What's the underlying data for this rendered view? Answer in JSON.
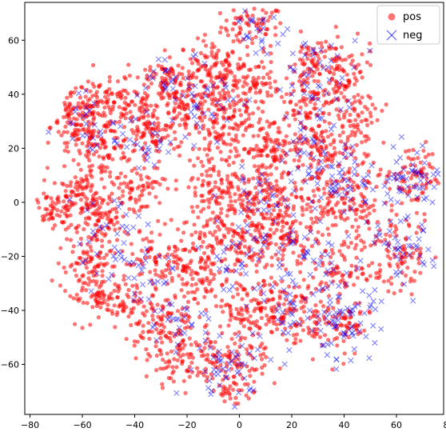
{
  "chart_data": {
    "type": "scatter",
    "title": "",
    "xlabel": "",
    "ylabel": "",
    "xlim": [
      -82,
      78
    ],
    "ylim": [
      -78.5,
      74
    ],
    "xticks": [
      -80,
      -60,
      -40,
      -20,
      0,
      20,
      40,
      60,
      80
    ],
    "yticks": [
      -60,
      -40,
      -20,
      0,
      20,
      40,
      60
    ],
    "x_tick_labels": [
      "−80",
      "−60",
      "−40",
      "−20",
      "0",
      "20",
      "40",
      "60",
      "80"
    ],
    "y_tick_labels": [
      "−60",
      "−40",
      "−20",
      "0",
      "20",
      "40",
      "60"
    ],
    "grid": false,
    "legend_position": "top-right",
    "series": [
      {
        "name": "pos",
        "marker": "circle",
        "color": "#ff0000",
        "alpha": 0.55,
        "clusters": [
          {
            "cx": 5,
            "cy": 65,
            "sx": 6,
            "sy": 4,
            "n": 70
          },
          {
            "cx": -10,
            "cy": 52,
            "sx": 5,
            "sy": 4,
            "n": 55
          },
          {
            "cx": -28,
            "cy": 45,
            "sx": 8,
            "sy": 5,
            "n": 110
          },
          {
            "cx": -52,
            "cy": 37,
            "sx": 9,
            "sy": 4,
            "n": 120
          },
          {
            "cx": -62,
            "cy": 28,
            "sx": 5,
            "sy": 6,
            "n": 90
          },
          {
            "cx": -52,
            "cy": 20,
            "sx": 6,
            "sy": 6,
            "n": 100
          },
          {
            "cx": -35,
            "cy": 26,
            "sx": 6,
            "sy": 6,
            "n": 100
          },
          {
            "cx": -22,
            "cy": 35,
            "sx": 5,
            "sy": 5,
            "n": 60
          },
          {
            "cx": -8,
            "cy": 40,
            "sx": 6,
            "sy": 6,
            "n": 110
          },
          {
            "cx": 5,
            "cy": 45,
            "sx": 5,
            "sy": 5,
            "n": 60
          },
          {
            "cx": -5,
            "cy": 25,
            "sx": 8,
            "sy": 6,
            "n": 100
          },
          {
            "cx": 12,
            "cy": 20,
            "sx": 6,
            "sy": 6,
            "n": 90
          },
          {
            "cx": 28,
            "cy": 35,
            "sx": 8,
            "sy": 6,
            "n": 110
          },
          {
            "cx": 30,
            "cy": 52,
            "sx": 6,
            "sy": 5,
            "n": 80
          },
          {
            "cx": 40,
            "cy": 45,
            "sx": 6,
            "sy": 6,
            "n": 60
          },
          {
            "cx": 30,
            "cy": 20,
            "sx": 6,
            "sy": 5,
            "n": 70
          },
          {
            "cx": 45,
            "cy": 32,
            "sx": 5,
            "sy": 5,
            "n": 50
          },
          {
            "cx": 67,
            "cy": 10,
            "sx": 6,
            "sy": 6,
            "n": 90
          },
          {
            "cx": 35,
            "cy": 8,
            "sx": 10,
            "sy": 7,
            "n": 120
          },
          {
            "cx": 10,
            "cy": 0,
            "sx": 8,
            "sy": 8,
            "n": 140
          },
          {
            "cx": -8,
            "cy": 5,
            "sx": 7,
            "sy": 8,
            "n": 120
          },
          {
            "cx": -40,
            "cy": 5,
            "sx": 6,
            "sy": 5,
            "n": 70
          },
          {
            "cx": -60,
            "cy": 2,
            "sx": 6,
            "sy": 4,
            "n": 90
          },
          {
            "cx": -72,
            "cy": -3,
            "sx": 3,
            "sy": 3,
            "n": 40
          },
          {
            "cx": -55,
            "cy": -8,
            "sx": 6,
            "sy": 6,
            "n": 90
          },
          {
            "cx": -58,
            "cy": -28,
            "sx": 6,
            "sy": 8,
            "n": 120
          },
          {
            "cx": -45,
            "cy": -35,
            "sx": 5,
            "sy": 5,
            "n": 60
          },
          {
            "cx": -30,
            "cy": -20,
            "sx": 6,
            "sy": 6,
            "n": 80
          },
          {
            "cx": -15,
            "cy": -25,
            "sx": 6,
            "sy": 6,
            "n": 90
          },
          {
            "cx": -30,
            "cy": -45,
            "sx": 7,
            "sy": 6,
            "n": 110
          },
          {
            "cx": -2,
            "cy": -15,
            "sx": 8,
            "sy": 6,
            "n": 110
          },
          {
            "cx": 20,
            "cy": -15,
            "sx": 8,
            "sy": 6,
            "n": 100
          },
          {
            "cx": 40,
            "cy": -5,
            "sx": 8,
            "sy": 5,
            "n": 80
          },
          {
            "cx": 60,
            "cy": -18,
            "sx": 8,
            "sy": 7,
            "n": 100
          },
          {
            "cx": 40,
            "cy": -25,
            "sx": 6,
            "sy": 5,
            "n": 70
          },
          {
            "cx": 5,
            "cy": -40,
            "sx": 9,
            "sy": 6,
            "n": 130
          },
          {
            "cx": 22,
            "cy": -42,
            "sx": 6,
            "sy": 6,
            "n": 80
          },
          {
            "cx": 38,
            "cy": -45,
            "sx": 6,
            "sy": 6,
            "n": 80
          },
          {
            "cx": -5,
            "cy": -60,
            "sx": 8,
            "sy": 6,
            "n": 120
          },
          {
            "cx": -3,
            "cy": -70,
            "sx": 3,
            "sy": 2,
            "n": 20
          },
          {
            "cx": -25,
            "cy": -60,
            "sx": 5,
            "sy": 4,
            "n": 50
          }
        ]
      },
      {
        "name": "neg",
        "marker": "x",
        "color": "#0000ff",
        "alpha": 0.5,
        "clusters": [
          {
            "cx": 8,
            "cy": 64,
            "sx": 5,
            "sy": 4,
            "n": 25
          },
          {
            "cx": -25,
            "cy": 45,
            "sx": 8,
            "sy": 5,
            "n": 30
          },
          {
            "cx": -55,
            "cy": 30,
            "sx": 7,
            "sy": 6,
            "n": 30
          },
          {
            "cx": -35,
            "cy": 22,
            "sx": 6,
            "sy": 6,
            "n": 25
          },
          {
            "cx": -8,
            "cy": 35,
            "sx": 7,
            "sy": 6,
            "n": 25
          },
          {
            "cx": 30,
            "cy": 45,
            "sx": 8,
            "sy": 8,
            "n": 50
          },
          {
            "cx": 30,
            "cy": 20,
            "sx": 7,
            "sy": 6,
            "n": 30
          },
          {
            "cx": 67,
            "cy": 10,
            "sx": 6,
            "sy": 6,
            "n": 55
          },
          {
            "cx": 40,
            "cy": 8,
            "sx": 8,
            "sy": 7,
            "n": 50
          },
          {
            "cx": 10,
            "cy": 0,
            "sx": 8,
            "sy": 8,
            "n": 40
          },
          {
            "cx": -50,
            "cy": -10,
            "sx": 8,
            "sy": 7,
            "n": 30
          },
          {
            "cx": -40,
            "cy": -25,
            "sx": 8,
            "sy": 7,
            "n": 30
          },
          {
            "cx": -25,
            "cy": -45,
            "sx": 6,
            "sy": 5,
            "n": 25
          },
          {
            "cx": 0,
            "cy": -20,
            "sx": 8,
            "sy": 6,
            "n": 30
          },
          {
            "cx": 25,
            "cy": -20,
            "sx": 8,
            "sy": 6,
            "n": 35
          },
          {
            "cx": 60,
            "cy": -20,
            "sx": 8,
            "sy": 7,
            "n": 50
          },
          {
            "cx": 40,
            "cy": -45,
            "sx": 7,
            "sy": 7,
            "n": 65
          },
          {
            "cx": 20,
            "cy": -40,
            "sx": 8,
            "sy": 6,
            "n": 40
          },
          {
            "cx": -5,
            "cy": -60,
            "sx": 8,
            "sy": 6,
            "n": 50
          }
        ]
      }
    ]
  }
}
